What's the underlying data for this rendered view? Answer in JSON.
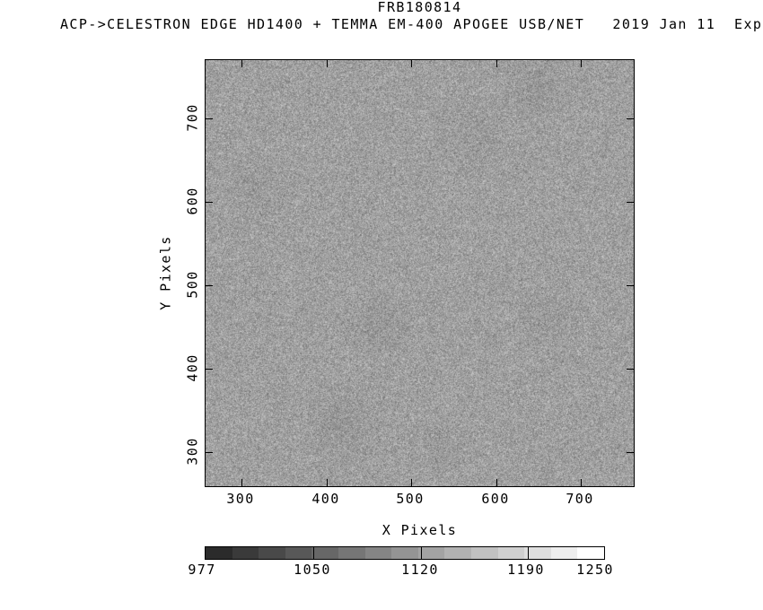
{
  "header": {
    "title": "FRB180814",
    "subtitle": "ACP->CELESTRON EDGE HD1400 + TEMMA EM-400 APOGEE USB/NET   2019 Jan 11  Exp"
  },
  "chart_data": {
    "type": "heatmap",
    "title": "FRB180814",
    "xlabel": "X Pixels",
    "ylabel": "Y Pixels",
    "x_ticks": [
      300,
      400,
      500,
      600,
      700
    ],
    "y_ticks": [
      300,
      400,
      500,
      600,
      700
    ],
    "xlim": [
      258,
      765
    ],
    "ylim": [
      257,
      770
    ],
    "grid": false,
    "image_content": "uniform fine-grained grayscale noise (CCD sky background frame)",
    "colorbar": {
      "position": "bottom",
      "tick_labels": [
        "977",
        "1050",
        "1120",
        "1190",
        "1250"
      ],
      "min": 977,
      "max": 1250,
      "step_colors": [
        "#2b2b2b",
        "#3a3a3a",
        "#494949",
        "#585858",
        "#676767",
        "#767676",
        "#858585",
        "#949494",
        "#a3a3a3",
        "#b2b2b2",
        "#c1c1c1",
        "#d0d0d0",
        "#dfdfdf",
        "#eeeeee",
        "#ffffff"
      ]
    }
  },
  "colors": {
    "background": "#ffffff",
    "axis": "#000000",
    "noise_mean_gray": "#a6a6a6"
  }
}
